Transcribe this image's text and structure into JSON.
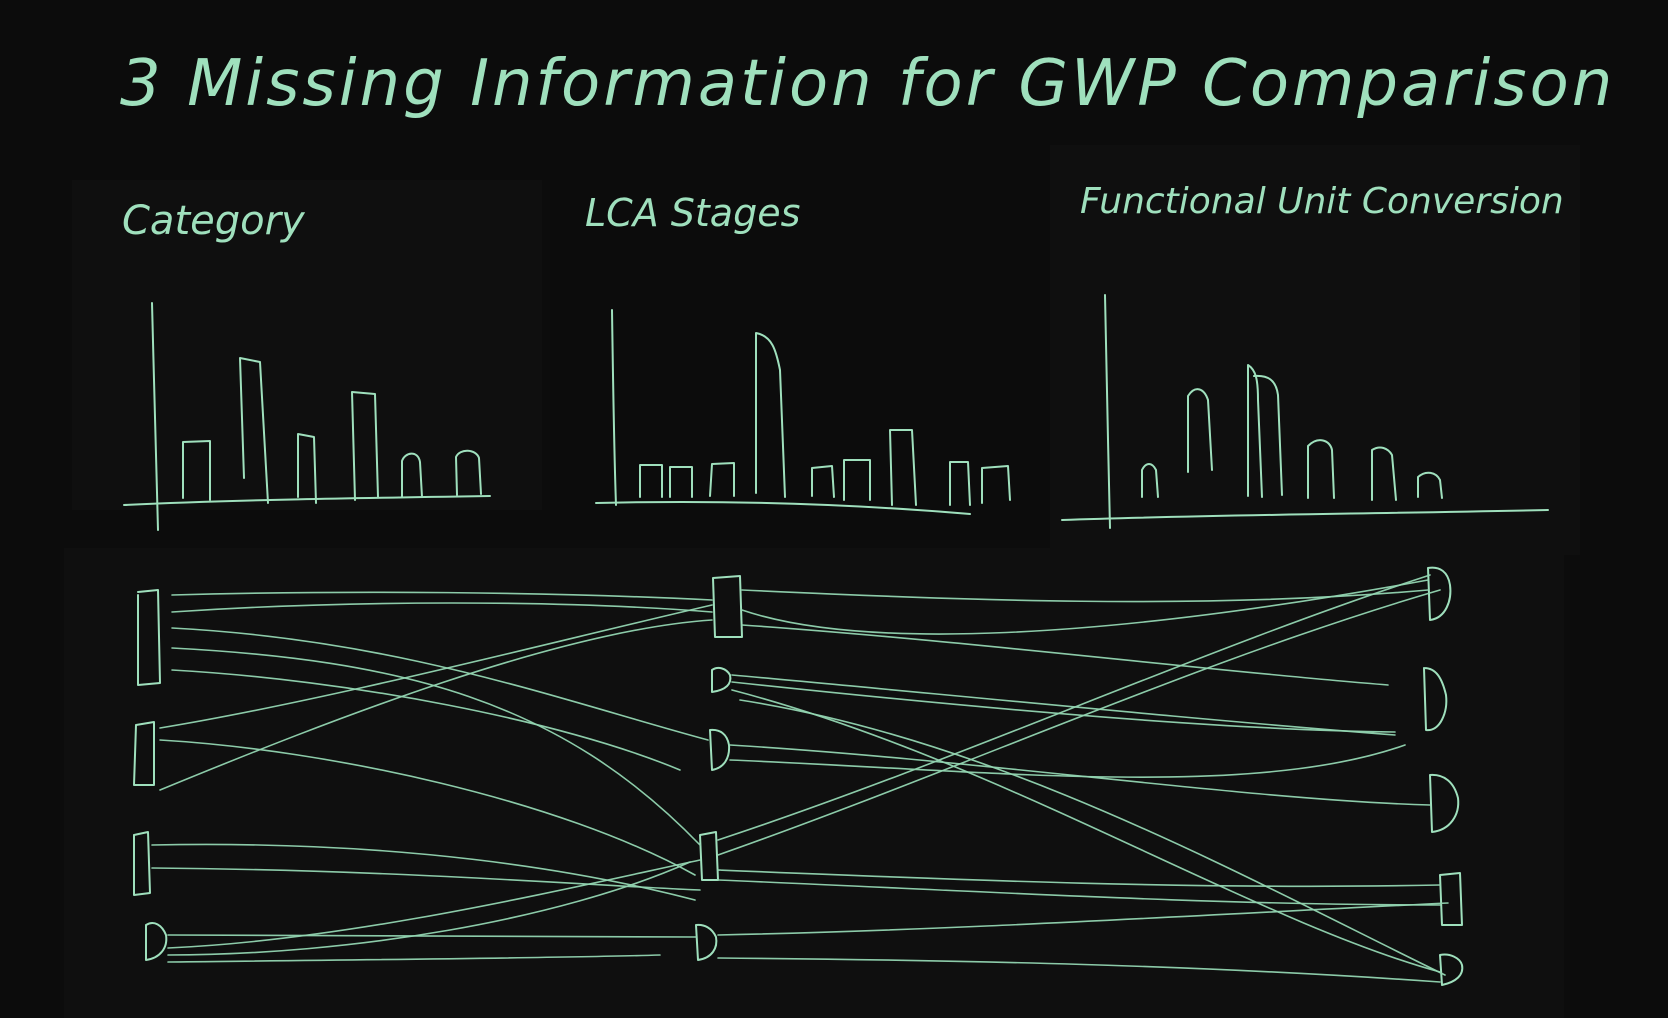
{
  "title": "3 Missing Information for GWP Comparison",
  "sections": [
    {
      "label": "Category"
    },
    {
      "label": "LCA Stages"
    },
    {
      "label": "Functional Unit Conversion"
    }
  ],
  "colors": {
    "background": "#0c0c0c",
    "ink": "#9fe0bd"
  },
  "histograms": [
    {
      "name": "category-histogram",
      "relative_bar_heights": [
        0.4,
        0.95,
        0.45,
        0.75,
        0.25,
        0.32
      ]
    },
    {
      "name": "lca-stages-histogram",
      "relative_bar_heights": [
        0.2,
        0.22,
        0.24,
        0.95,
        0.2,
        0.22,
        0.4,
        0.18,
        0.2
      ]
    },
    {
      "name": "functional-unit-histogram",
      "relative_bar_heights": [
        0.25,
        0.6,
        0.75,
        0.75,
        0.35,
        0.28,
        0.28
      ]
    }
  ],
  "flow_diagram": {
    "left_nodes": 4,
    "middle_nodes": 5,
    "right_nodes": 5
  }
}
